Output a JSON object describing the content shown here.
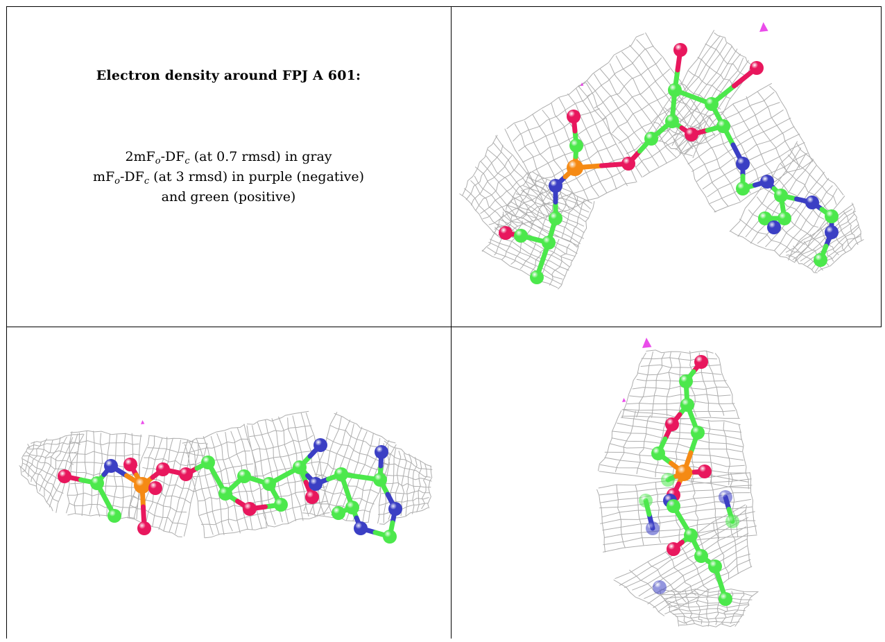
{
  "caption": {
    "title": "Electron density around FPJ A 601:",
    "line1": {
      "a": "2mF",
      "sub_o": "o",
      "b": "-DF",
      "sub_c": "c",
      "c": " (at 0.7 rmsd) in gray"
    },
    "line2": {
      "a": "mF",
      "sub_o": "o",
      "b": "-DF",
      "sub_c": "c",
      "c": " (at 3 rmsd) in purple (negative)"
    },
    "line3": "and green (positive)"
  },
  "colors": {
    "mesh": "#a9a9a9",
    "carbon": "#4ce84c",
    "oxygen": "#e8175d",
    "nitrogen": "#3b3fc4",
    "phosphorus": "#f58a14",
    "negative_density": "#e62ee6",
    "border": "#000000"
  },
  "panels": [
    {
      "name": "view-top-right"
    },
    {
      "name": "view-bottom-left"
    },
    {
      "name": "view-bottom-right"
    }
  ]
}
